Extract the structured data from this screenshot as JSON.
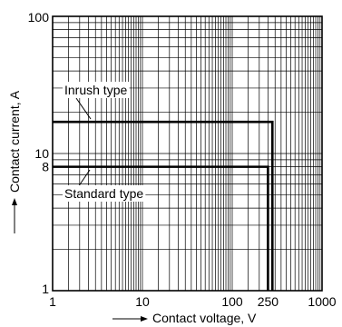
{
  "chart_data": {
    "type": "line",
    "title": "",
    "xlabel": "Contact voltage, V",
    "ylabel": "Contact current, A",
    "xscale": "log",
    "yscale": "log",
    "xlim": [
      1,
      1000
    ],
    "ylim": [
      1,
      100
    ],
    "grid": true,
    "x_tick_labels": [
      "1",
      "10",
      "100",
      "250",
      "1000"
    ],
    "x_tick_values": [
      1,
      10,
      100,
      250,
      1000
    ],
    "y_tick_labels": [
      "1",
      "8",
      "10",
      "100"
    ],
    "y_tick_values": [
      1,
      8,
      10,
      100
    ],
    "series": [
      {
        "name": "Inrush type",
        "x": [
          1,
          280,
          280
        ],
        "y": [
          17,
          17,
          1
        ]
      },
      {
        "name": "Standard type",
        "x": [
          1,
          250,
          250
        ],
        "y": [
          8,
          8,
          1
        ]
      }
    ]
  }
}
